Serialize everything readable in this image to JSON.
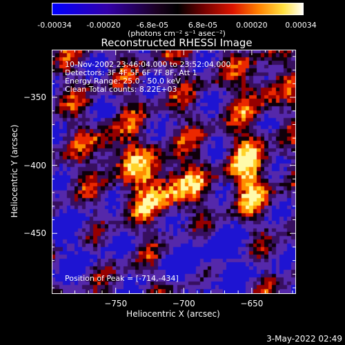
{
  "colorbar": {
    "ticks": [
      "-0.00034",
      "-0.00020",
      "-6.8e-05",
      "6.8e-05",
      "0.00020",
      "0.00034"
    ],
    "tick_values": [
      -0.00034,
      -0.0002,
      -6.8e-05,
      6.8e-05,
      0.0002,
      0.00034
    ],
    "range": [
      -0.00034,
      0.00034
    ],
    "units": "(photons cm⁻² s⁻¹ asec⁻²)",
    "colors": [
      "#0000ff",
      "#3a00a8",
      "#000000",
      "#8b0000",
      "#ff4500",
      "#ffd700",
      "#ffffff"
    ]
  },
  "plot": {
    "title": "Reconstructed RHESSI Image",
    "xlabel": "Heliocentric X (arcsec)",
    "ylabel": "Heliocentric Y (arcsec)",
    "xlim": [
      -797,
      -618
    ],
    "ylim": [
      -494,
      -315
    ],
    "x_ticks": [
      -750,
      -700,
      -650
    ],
    "y_ticks": [
      -350,
      -400,
      -450
    ],
    "x_tick_labels": [
      "−750",
      "−700",
      "−650"
    ],
    "y_tick_labels": [
      "−350",
      "−400",
      "−450"
    ]
  },
  "annotations": {
    "time_range": "10-Nov-2002 23:46:04.000 to 23:52:04.000",
    "detectors": "Detectors: 3F 4F 5F 6F 7F 8F, Att 1",
    "energy": "Energy Range: 25.0 - 50.0 keV",
    "clean": "Clean     Total counts: 8.22E+03",
    "peak": "Position of Peak = [-714,-434]"
  },
  "timestamp": "3-May-2022 02:49"
}
